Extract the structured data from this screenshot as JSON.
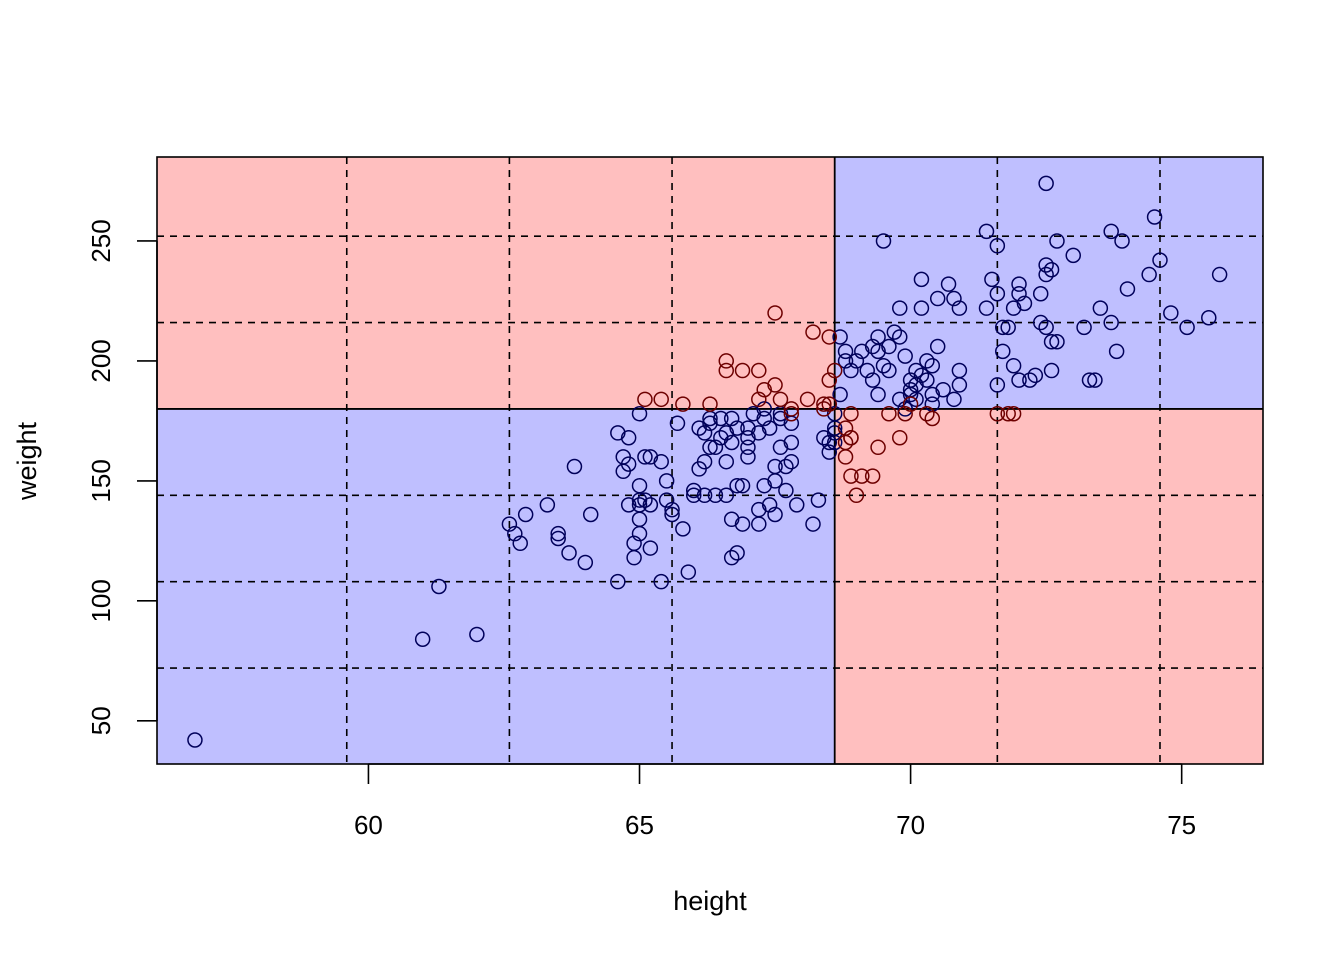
{
  "chart_data": {
    "type": "scatter",
    "title": "",
    "xlabel": "height",
    "ylabel": "weight",
    "xlim": [
      56.1,
      76.5
    ],
    "ylim": [
      32,
      285
    ],
    "xticks": [
      "60",
      "65",
      "70",
      "75"
    ],
    "yticks": [
      "50",
      "100",
      "150",
      "200",
      "250"
    ],
    "xtick_values": [
      60,
      65,
      70,
      75
    ],
    "ytick_values": [
      50,
      100,
      150,
      200,
      250
    ],
    "grid": {
      "style": "dashed",
      "x": [
        59.6,
        62.6,
        65.6,
        71.6,
        74.6
      ],
      "y": [
        72,
        108,
        144,
        216,
        252
      ]
    },
    "regions": {
      "x_split": 68.6,
      "y_split": 180,
      "bottom_left": "#bfbfff",
      "top_right": "#bfbfff",
      "top_left": "#ffbfbf",
      "bottom_right": "#ffbfbf"
    },
    "colors": {
      "class_a": "#00005a",
      "class_b": "#6e0000"
    },
    "series": [
      {
        "class": "a",
        "points": [
          [
            56.8,
            42
          ],
          [
            61.0,
            84
          ],
          [
            62.0,
            86
          ],
          [
            61.3,
            106
          ],
          [
            62.6,
            132
          ],
          [
            62.7,
            128
          ],
          [
            62.8,
            124
          ],
          [
            62.9,
            136
          ],
          [
            63.3,
            140
          ],
          [
            63.5,
            128
          ],
          [
            63.5,
            126
          ],
          [
            63.7,
            120
          ],
          [
            63.8,
            156
          ],
          [
            64.0,
            116
          ],
          [
            64.1,
            136
          ],
          [
            64.6,
            108
          ],
          [
            64.6,
            170
          ],
          [
            64.7,
            154
          ],
          [
            64.7,
            160
          ],
          [
            64.8,
            168
          ],
          [
            64.8,
            140
          ],
          [
            64.8,
            157
          ],
          [
            64.9,
            124
          ],
          [
            64.9,
            118
          ],
          [
            65.0,
            142
          ],
          [
            65.0,
            140
          ],
          [
            65.0,
            128
          ],
          [
            65.0,
            148
          ],
          [
            65.0,
            134
          ],
          [
            65.0,
            178
          ],
          [
            65.1,
            160
          ],
          [
            65.1,
            142
          ],
          [
            65.2,
            160
          ],
          [
            65.2,
            140
          ],
          [
            65.2,
            122
          ],
          [
            65.4,
            108
          ],
          [
            65.4,
            158
          ],
          [
            65.5,
            150
          ],
          [
            65.5,
            142
          ],
          [
            65.6,
            136
          ],
          [
            65.6,
            138
          ],
          [
            65.7,
            174
          ],
          [
            65.8,
            130
          ],
          [
            65.9,
            112
          ],
          [
            66.0,
            146
          ],
          [
            66.0,
            144
          ],
          [
            66.1,
            155
          ],
          [
            66.1,
            172
          ],
          [
            66.2,
            158
          ],
          [
            66.2,
            144
          ],
          [
            66.2,
            170
          ],
          [
            66.3,
            176
          ],
          [
            66.3,
            164
          ],
          [
            66.3,
            174
          ],
          [
            66.4,
            144
          ],
          [
            66.4,
            164
          ],
          [
            66.5,
            168
          ],
          [
            66.5,
            176
          ],
          [
            66.6,
            158
          ],
          [
            66.6,
            144
          ],
          [
            66.6,
            170
          ],
          [
            66.7,
            166
          ],
          [
            66.7,
            118
          ],
          [
            66.7,
            134
          ],
          [
            66.7,
            176
          ],
          [
            66.8,
            172
          ],
          [
            66.8,
            120
          ],
          [
            66.8,
            148
          ],
          [
            66.9,
            132
          ],
          [
            66.9,
            148
          ],
          [
            67.0,
            160
          ],
          [
            67.0,
            164
          ],
          [
            67.0,
            168
          ],
          [
            67.0,
            172
          ],
          [
            67.1,
            178
          ],
          [
            67.2,
            132
          ],
          [
            67.2,
            170
          ],
          [
            67.2,
            138
          ],
          [
            67.3,
            180
          ],
          [
            67.3,
            148
          ],
          [
            67.3,
            176
          ],
          [
            67.4,
            140
          ],
          [
            67.4,
            172
          ],
          [
            67.5,
            136
          ],
          [
            67.5,
            156
          ],
          [
            67.5,
            150
          ],
          [
            67.6,
            176
          ],
          [
            67.6,
            178
          ],
          [
            67.6,
            164
          ],
          [
            67.7,
            156
          ],
          [
            67.7,
            146
          ],
          [
            67.8,
            158
          ],
          [
            67.8,
            166
          ],
          [
            67.8,
            174
          ],
          [
            67.9,
            140
          ],
          [
            68.2,
            132
          ],
          [
            68.3,
            142
          ],
          [
            68.4,
            168
          ],
          [
            68.5,
            162
          ],
          [
            68.5,
            166
          ],
          [
            68.6,
            172
          ],
          [
            68.6,
            178
          ],
          [
            68.6,
            166
          ],
          [
            68.6,
            170
          ],
          [
            68.7,
            186
          ],
          [
            68.7,
            210
          ],
          [
            68.8,
            200
          ],
          [
            68.8,
            204
          ],
          [
            68.9,
            196
          ],
          [
            69.0,
            200
          ],
          [
            69.1,
            204
          ],
          [
            69.2,
            196
          ],
          [
            69.3,
            206
          ],
          [
            69.3,
            192
          ],
          [
            69.4,
            186
          ],
          [
            69.4,
            204
          ],
          [
            69.4,
            210
          ],
          [
            69.5,
            198
          ],
          [
            69.5,
            250
          ],
          [
            69.6,
            206
          ],
          [
            69.6,
            196
          ],
          [
            69.7,
            212
          ],
          [
            69.8,
            210
          ],
          [
            69.8,
            222
          ],
          [
            69.8,
            184
          ],
          [
            69.9,
            180
          ],
          [
            69.9,
            202
          ],
          [
            70.0,
            188
          ],
          [
            70.0,
            186
          ],
          [
            70.0,
            192
          ],
          [
            70.1,
            196
          ],
          [
            70.1,
            190
          ],
          [
            70.1,
            184
          ],
          [
            70.2,
            194
          ],
          [
            70.2,
            222
          ],
          [
            70.2,
            234
          ],
          [
            70.3,
            200
          ],
          [
            70.3,
            192
          ],
          [
            70.4,
            198
          ],
          [
            70.4,
            186
          ],
          [
            70.4,
            182
          ],
          [
            70.5,
            206
          ],
          [
            70.5,
            226
          ],
          [
            70.6,
            188
          ],
          [
            70.7,
            232
          ],
          [
            70.8,
            226
          ],
          [
            70.8,
            184
          ],
          [
            70.9,
            196
          ],
          [
            70.9,
            222
          ],
          [
            70.9,
            190
          ],
          [
            71.4,
            254
          ],
          [
            71.4,
            222
          ],
          [
            71.5,
            234
          ],
          [
            71.6,
            228
          ],
          [
            71.6,
            248
          ],
          [
            71.6,
            190
          ],
          [
            71.7,
            214
          ],
          [
            71.7,
            204
          ],
          [
            71.8,
            214
          ],
          [
            71.9,
            222
          ],
          [
            71.9,
            198
          ],
          [
            72.0,
            232
          ],
          [
            72.0,
            228
          ],
          [
            72.0,
            192
          ],
          [
            72.1,
            224
          ],
          [
            72.2,
            192
          ],
          [
            72.3,
            194
          ],
          [
            72.4,
            228
          ],
          [
            72.4,
            216
          ],
          [
            72.5,
            240
          ],
          [
            72.5,
            274
          ],
          [
            72.5,
            236
          ],
          [
            72.5,
            214
          ],
          [
            72.6,
            238
          ],
          [
            72.6,
            208
          ],
          [
            72.6,
            196
          ],
          [
            72.7,
            250
          ],
          [
            72.7,
            208
          ],
          [
            73.0,
            244
          ],
          [
            73.2,
            214
          ],
          [
            73.3,
            192
          ],
          [
            73.4,
            192
          ],
          [
            73.5,
            222
          ],
          [
            73.7,
            216
          ],
          [
            73.7,
            254
          ],
          [
            73.8,
            204
          ],
          [
            73.9,
            250
          ],
          [
            74.0,
            230
          ],
          [
            74.4,
            236
          ],
          [
            74.5,
            260
          ],
          [
            74.6,
            242
          ],
          [
            74.8,
            220
          ],
          [
            75.1,
            214
          ],
          [
            75.5,
            218
          ],
          [
            75.7,
            236
          ]
        ]
      },
      {
        "class": "b",
        "points": [
          [
            65.1,
            184
          ],
          [
            65.4,
            184
          ],
          [
            65.8,
            182
          ],
          [
            66.3,
            182
          ],
          [
            66.6,
            196
          ],
          [
            66.6,
            200
          ],
          [
            66.9,
            196
          ],
          [
            67.2,
            196
          ],
          [
            67.2,
            184
          ],
          [
            67.3,
            188
          ],
          [
            67.5,
            220
          ],
          [
            67.5,
            190
          ],
          [
            67.6,
            184
          ],
          [
            67.8,
            180
          ],
          [
            67.8,
            178
          ],
          [
            68.1,
            184
          ],
          [
            68.2,
            212
          ],
          [
            68.4,
            180
          ],
          [
            68.4,
            182
          ],
          [
            68.5,
            182
          ],
          [
            68.5,
            210
          ],
          [
            68.5,
            192
          ],
          [
            68.6,
            196
          ],
          [
            68.8,
            172
          ],
          [
            68.8,
            160
          ],
          [
            68.8,
            166
          ],
          [
            68.9,
            168
          ],
          [
            68.9,
            178
          ],
          [
            68.9,
            168
          ],
          [
            68.9,
            152
          ],
          [
            69.0,
            144
          ],
          [
            69.1,
            152
          ],
          [
            69.3,
            152
          ],
          [
            69.4,
            164
          ],
          [
            69.6,
            178
          ],
          [
            69.8,
            168
          ],
          [
            69.9,
            178
          ],
          [
            70.0,
            182
          ],
          [
            70.3,
            178
          ],
          [
            70.4,
            176
          ],
          [
            71.6,
            178
          ],
          [
            71.8,
            178
          ],
          [
            71.9,
            178
          ]
        ]
      }
    ]
  }
}
